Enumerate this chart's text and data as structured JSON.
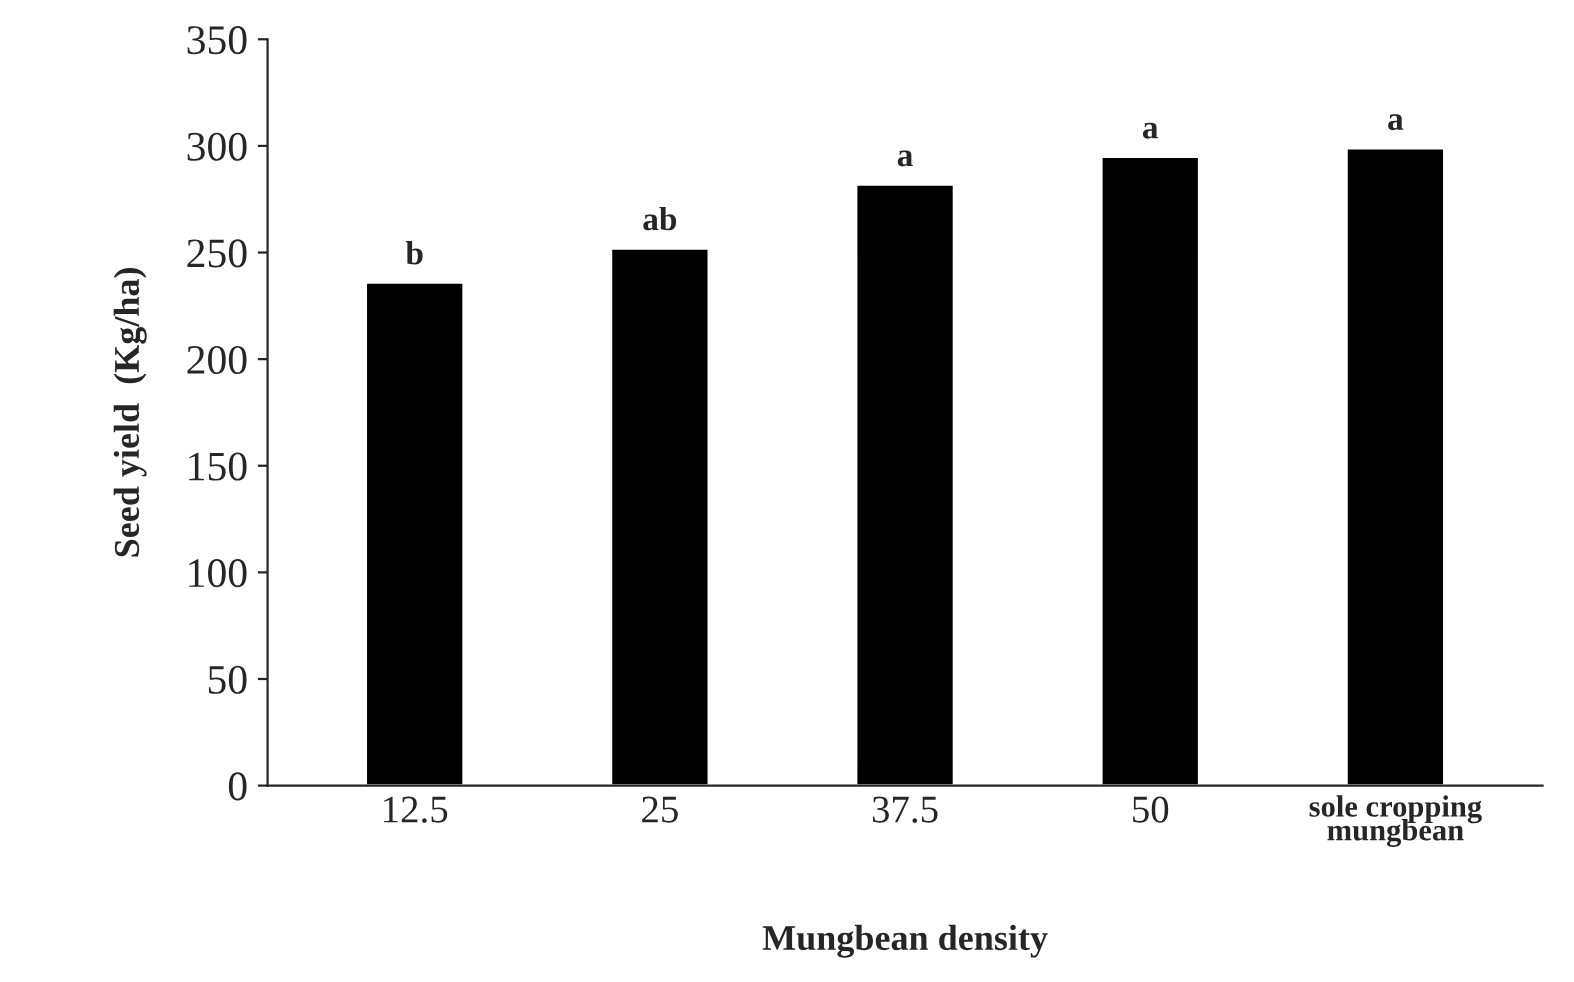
{
  "chart_data": {
    "type": "bar",
    "xlabel": "Mungbean density",
    "ylabel": "Seed yield  (Kg/ha)",
    "categories": [
      "12.5",
      "25",
      "37.5",
      "50",
      "sole cropping\nmungbean"
    ],
    "values": [
      236,
      252,
      282,
      295,
      299
    ],
    "color": "#000000",
    "ylim": [
      0,
      350
    ],
    "yticks": [
      0,
      50,
      100,
      150,
      200,
      250,
      300,
      350
    ],
    "grid": false,
    "annotations": [
      {
        "text": "b",
        "x": "12.5",
        "y": 236
      },
      {
        "text": "ab",
        "x": "25",
        "y": 252
      },
      {
        "text": "a",
        "x": "37.5",
        "y": 282
      },
      {
        "text": "a",
        "x": "50",
        "y": 295
      },
      {
        "text": "a",
        "x": "sole cropping\nmungbean",
        "y": 299
      }
    ]
  }
}
